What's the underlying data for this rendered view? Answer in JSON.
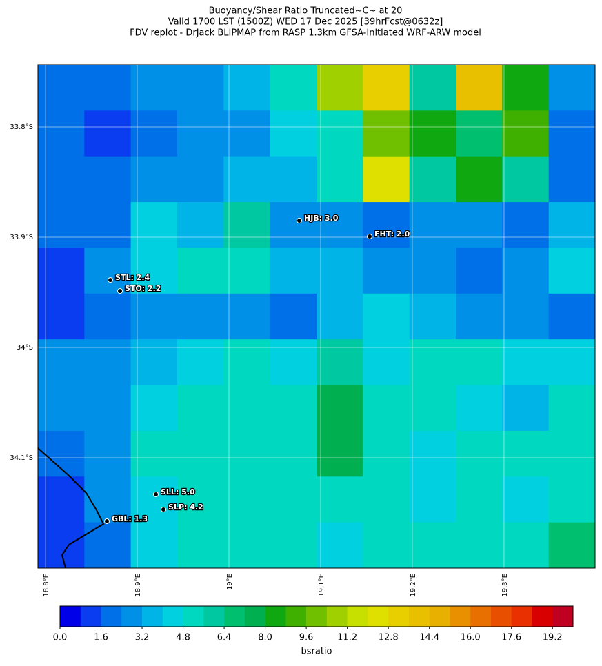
{
  "chart_data": {
    "type": "heatmap-map",
    "title": [
      "Buoyancy/Shear Ratio Truncated~C~    at 20",
      "Valid 1700 LST (1500Z) WED 17 Dec 2025 [39hrFcst@0632z]",
      "FDV replot - DrJack BLIPMAP from RASP 1.3km GFSA-Initiated WRF-ARW model"
    ],
    "xlim": [
      18.7917,
      19.3993
    ],
    "ylim": [
      -34.2,
      -33.74375
    ],
    "xticks": [
      {
        "value": 18.8,
        "label": "18.8°E"
      },
      {
        "value": 18.9,
        "label": "18.9°E"
      },
      {
        "value": 19.0,
        "label": "19°E"
      },
      {
        "value": 19.1,
        "label": "19.1°E"
      },
      {
        "value": 19.2,
        "label": "19.2°E"
      },
      {
        "value": 19.3,
        "label": "19.3°E"
      }
    ],
    "yticks": [
      {
        "value": -33.8,
        "label": "33.8°S"
      },
      {
        "value": -33.9,
        "label": "33.9°S"
      },
      {
        "value": -34.0,
        "label": "34°S"
      },
      {
        "value": -34.1,
        "label": "34.1°S"
      }
    ],
    "grid": true,
    "field": [
      [
        1.6,
        1.6,
        2.4,
        2.4,
        3.2,
        4.8,
        11,
        13,
        6,
        14,
        8,
        2.4
      ],
      [
        1.6,
        0.8,
        1.6,
        2.4,
        2.4,
        4.0,
        5.6,
        10,
        8,
        7,
        9,
        1.6
      ],
      [
        1.6,
        1.6,
        2.4,
        2.4,
        3.2,
        3.2,
        4.8,
        12,
        6,
        8,
        6,
        1.6
      ],
      [
        1.6,
        1.6,
        4,
        3.2,
        6,
        2.4,
        2.4,
        1.6,
        2.4,
        2.4,
        1.6,
        3.2
      ],
      [
        1.2,
        2.4,
        4,
        4.8,
        5.6,
        3.2,
        3.2,
        2.4,
        2.4,
        1.6,
        2.4,
        4
      ],
      [
        1.2,
        1.6,
        2.4,
        2.4,
        2.4,
        1.6,
        3.2,
        4.0,
        3.2,
        2.4,
        2.4,
        1.6
      ],
      [
        2.4,
        2.4,
        3.2,
        4,
        4.8,
        4,
        6,
        4,
        4.8,
        5.6,
        4,
        4
      ],
      [
        2.4,
        2.4,
        4,
        5.6,
        5.6,
        4.8,
        7.2,
        4.8,
        4.8,
        4,
        3.2,
        5.6
      ],
      [
        1.6,
        2.4,
        4.8,
        5.6,
        4.8,
        5.6,
        7.2,
        5.6,
        4,
        4.8,
        4.8,
        4.8
      ],
      [
        0.8,
        2.4,
        4,
        4.8,
        4.8,
        4.8,
        5.6,
        4.8,
        4,
        4.8,
        4,
        5.6
      ],
      [
        0.8,
        1.6,
        4,
        4.8,
        4.8,
        4.8,
        4,
        4.8,
        4.8,
        4.8,
        5.6,
        6.4
      ]
    ],
    "stations": [
      {
        "name": "HJB: 3.0",
        "lon": 19.0767,
        "lat": -33.885
      },
      {
        "name": "FHT: 2.0",
        "lon": 19.1534,
        "lat": -33.8994
      },
      {
        "name": "STL: 2.4",
        "lon": 18.8707,
        "lat": -33.9388
      },
      {
        "name": "STO: 2.2",
        "lon": 18.8812,
        "lat": -33.9488
      },
      {
        "name": "SLL: 5.0",
        "lon": 18.9203,
        "lat": -34.1331
      },
      {
        "name": "SLP: 4.2",
        "lon": 18.9286,
        "lat": -34.1469
      },
      {
        "name": "GBL: 1.3",
        "lon": 18.8669,
        "lat": -34.1575
      }
    ],
    "colorbar": {
      "label": "bsratio",
      "clim": [
        0,
        20
      ],
      "colors": [
        "#0000e8",
        "#0a3cf0",
        "#0070e8",
        "#0090e8",
        "#00b4e8",
        "#00d0e0",
        "#00d8c0",
        "#00c8a0",
        "#00c070",
        "#00b050",
        "#10a810",
        "#40b000",
        "#70c000",
        "#a0d000",
        "#c8e000",
        "#e0e000",
        "#e8d000",
        "#e8c000",
        "#e8b000",
        "#e89000",
        "#e87000",
        "#e85000",
        "#e83000",
        "#d80000",
        "#c00020"
      ],
      "ticks": [
        {
          "value": 0,
          "label": "0.0"
        },
        1.6,
        3.2,
        4.8,
        6.4,
        {
          "value": 8,
          "label": "8.0"
        },
        9.6,
        11.2,
        12.8,
        14.4,
        {
          "value": 16,
          "label": "16.0"
        },
        17.6,
        19.2
      ]
    }
  }
}
